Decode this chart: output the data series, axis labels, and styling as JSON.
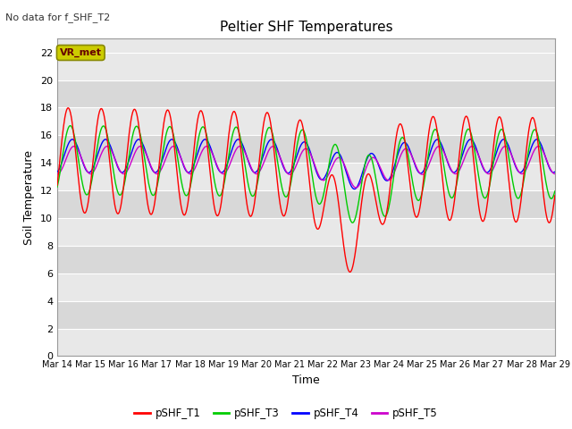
{
  "title": "Peltier SHF Temperatures",
  "no_data_label": "No data for f_SHF_T2",
  "vr_met_label": "VR_met",
  "ylabel": "Soil Temperature",
  "xlabel": "Time",
  "ylim": [
    0,
    23
  ],
  "yticks": [
    0,
    2,
    4,
    6,
    8,
    10,
    12,
    14,
    16,
    18,
    20,
    22
  ],
  "xtick_labels": [
    "Mar 14",
    "Mar 15",
    "Mar 16",
    "Mar 17",
    "Mar 18",
    "Mar 19",
    "Mar 20",
    "Mar 21",
    "Mar 22",
    "Mar 23",
    "Mar 24",
    "Mar 25",
    "Mar 26",
    "Mar 27",
    "Mar 28",
    "Mar 29"
  ],
  "colors": {
    "pSHF_T1": "#ff0000",
    "pSHF_T3": "#00cc00",
    "pSHF_T4": "#0000ff",
    "pSHF_T5": "#cc00cc"
  },
  "band_colors": [
    "#e8e8e8",
    "#d8d8d8"
  ],
  "grid_color": "#ffffff",
  "vr_met_bg": "#cccc00",
  "vr_met_fg": "#660000",
  "figsize": [
    6.4,
    4.8
  ],
  "dpi": 100
}
